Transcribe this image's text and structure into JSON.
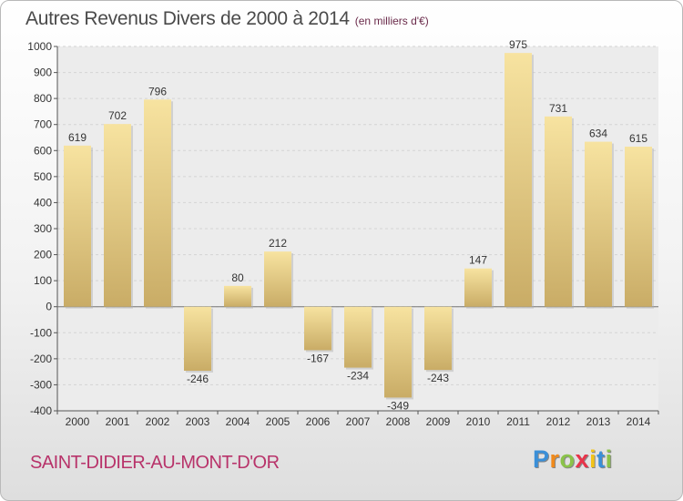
{
  "header": {
    "title": "Autres Revenus Divers de 2000 à 2014",
    "unit": "(en milliers d'€)"
  },
  "footer": {
    "commune": "SAINT-DIDIER-AU-MONT-D'OR",
    "brand_letters": [
      "P",
      "r",
      "o",
      "x",
      "i",
      "t",
      "i"
    ],
    "brand_colors": [
      "#3a8fd8",
      "#f08a1c",
      "#8bc34a",
      "#e8344a",
      "#f2c31a",
      "#3a8fd8",
      "#8bc34a"
    ]
  },
  "colors": {
    "bar_light": "#f7e3a0",
    "bar_dark": "#c9ac66",
    "axis_text": "#333333",
    "grid": "#d4d4d4"
  },
  "chart_data": {
    "type": "bar",
    "categories": [
      "2000",
      "2001",
      "2002",
      "2003",
      "2004",
      "2005",
      "2006",
      "2007",
      "2008",
      "2009",
      "2010",
      "2011",
      "2012",
      "2013",
      "2014"
    ],
    "values": [
      619,
      702,
      796,
      -246,
      80,
      212,
      -167,
      -234,
      -349,
      -243,
      147,
      975,
      731,
      634,
      615
    ],
    "ylim": [
      -400,
      1000
    ],
    "yticks": [
      -400,
      -300,
      -200,
      -100,
      0,
      100,
      200,
      300,
      400,
      500,
      600,
      700,
      800,
      900,
      1000
    ],
    "grid": "horizontal dashed",
    "legend": "none"
  }
}
